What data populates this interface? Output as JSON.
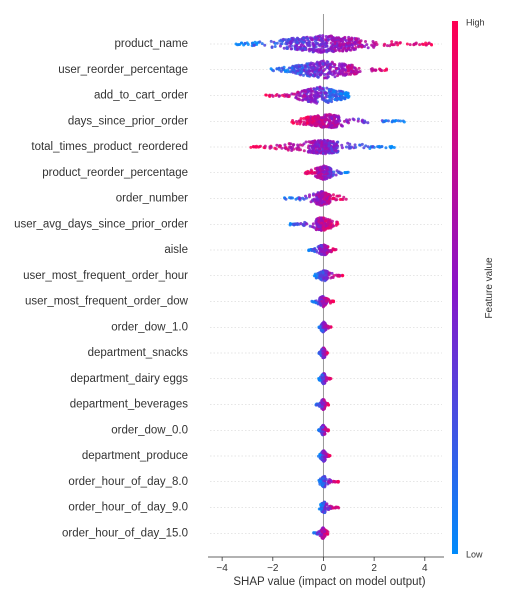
{
  "chart_data": {
    "type": "scatter",
    "subtype": "shap-beeswarm-summary",
    "title": "",
    "xlabel": "SHAP value (impact on model output)",
    "ylabel": "",
    "xlim": [
      -4.4,
      4.6
    ],
    "xticks": [
      {
        "value": -4,
        "label": "−4"
      },
      {
        "value": -2,
        "label": "−2"
      },
      {
        "value": 0,
        "label": "0"
      },
      {
        "value": 2,
        "label": "2"
      },
      {
        "value": 4,
        "label": "4"
      }
    ],
    "grid": "horizontal-dashed-per-feature",
    "zero_line": true,
    "colorbar": {
      "title": "Feature value",
      "high_label": "High",
      "low_label": "Low",
      "high_color": "#ff0052",
      "mid_color": "#8a14c8",
      "low_color": "#008bfb",
      "placement": "right"
    },
    "features": [
      {
        "name": "product_name",
        "min": -3.7,
        "max": 4.3,
        "low_side": "negative",
        "core": 1.4
      },
      {
        "name": "user_reorder_percentage",
        "min": -2.2,
        "max": 2.7,
        "low_side": "negative",
        "core": 1.2
      },
      {
        "name": "add_to_cart_order",
        "min": -2.3,
        "max": 1.1,
        "low_side": "positive",
        "core": 0.9
      },
      {
        "name": "days_since_prior_order",
        "min": -1.3,
        "max": 3.2,
        "low_side": "positive",
        "core": 0.6
      },
      {
        "name": "total_times_product_reordered",
        "min": -2.9,
        "max": 2.8,
        "low_side": "positive",
        "core": 0.5
      },
      {
        "name": "product_reorder_percentage",
        "min": -0.8,
        "max": 1.0,
        "low_side": "positive",
        "core": 0.3
      },
      {
        "name": "order_number",
        "min": -1.6,
        "max": 0.9,
        "low_side": "negative",
        "core": 0.25
      },
      {
        "name": "user_avg_days_since_prior_order",
        "min": -1.4,
        "max": 0.6,
        "low_side": "negative",
        "core": 0.25
      },
      {
        "name": "aisle",
        "min": -0.6,
        "max": 0.5,
        "low_side": "negative",
        "core": 0.15
      },
      {
        "name": "user_most_frequent_order_hour",
        "min": -0.4,
        "max": 0.8,
        "low_side": "negative",
        "core": 0.15
      },
      {
        "name": "user_most_frequent_order_dow",
        "min": -0.5,
        "max": 0.4,
        "low_side": "negative",
        "core": 0.12
      },
      {
        "name": "order_dow_1.0",
        "min": -0.2,
        "max": 0.3,
        "low_side": "negative",
        "core": 0.08
      },
      {
        "name": "department_snacks",
        "min": -0.2,
        "max": 0.2,
        "low_side": "negative",
        "core": 0.06
      },
      {
        "name": "department_dairy eggs",
        "min": -0.2,
        "max": 0.3,
        "low_side": "negative",
        "core": 0.06
      },
      {
        "name": "department_beverages",
        "min": -0.3,
        "max": 0.2,
        "low_side": "negative",
        "core": 0.06
      },
      {
        "name": "order_dow_0.0",
        "min": -0.2,
        "max": 0.2,
        "low_side": "negative",
        "core": 0.06
      },
      {
        "name": "department_produce",
        "min": -0.2,
        "max": 0.3,
        "low_side": "negative",
        "core": 0.06
      },
      {
        "name": "order_hour_of_day_8.0",
        "min": -0.2,
        "max": 0.6,
        "low_side": "negative",
        "core": 0.06
      },
      {
        "name": "order_hour_of_day_9.0",
        "min": -0.2,
        "max": 0.6,
        "low_side": "negative",
        "core": 0.06
      },
      {
        "name": "order_hour_of_day_15.0",
        "min": -0.4,
        "max": 0.2,
        "low_side": "negative",
        "core": 0.06
      }
    ]
  }
}
